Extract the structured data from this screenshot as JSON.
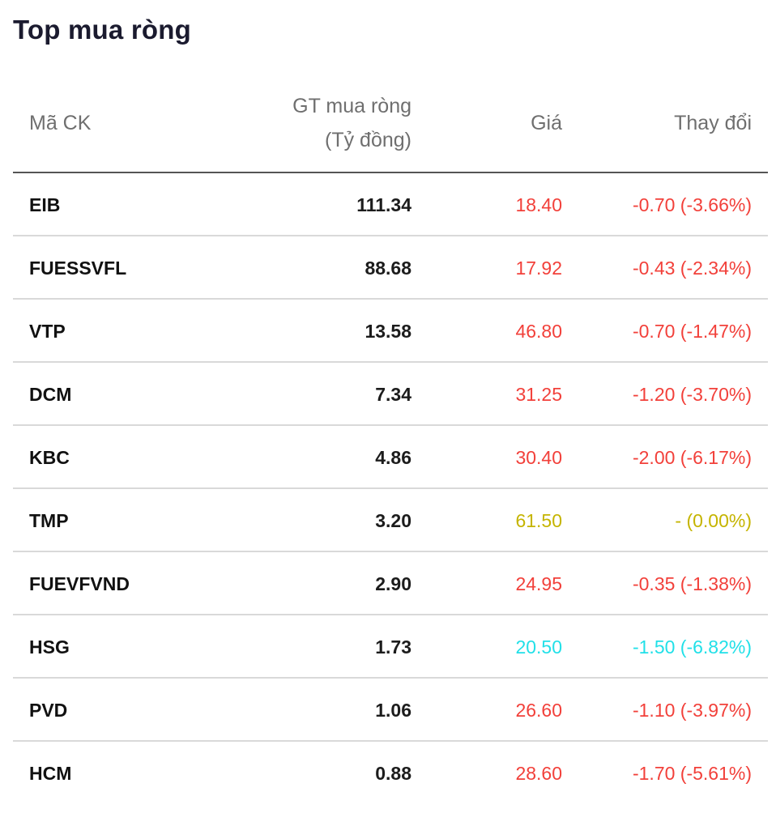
{
  "title": "Top mua ròng",
  "headers": {
    "code": "Mã CK",
    "value_line1": "GT mua ròng",
    "value_line2": "(Tỷ đồng)",
    "price": "Giá",
    "change": "Thay đổi"
  },
  "colors": {
    "down": "#f2403a",
    "reference": "#c5b400",
    "floor": "#21e0e8"
  },
  "rows": [
    {
      "code": "EIB",
      "value": "111.34",
      "price": "18.40",
      "change": "-0.70 (-3.66%)",
      "status": "down"
    },
    {
      "code": "FUESSVFL",
      "value": "88.68",
      "price": "17.92",
      "change": "-0.43 (-2.34%)",
      "status": "down"
    },
    {
      "code": "VTP",
      "value": "13.58",
      "price": "46.80",
      "change": "-0.70 (-1.47%)",
      "status": "down"
    },
    {
      "code": "DCM",
      "value": "7.34",
      "price": "31.25",
      "change": "-1.20 (-3.70%)",
      "status": "down"
    },
    {
      "code": "KBC",
      "value": "4.86",
      "price": "30.40",
      "change": "-2.00 (-6.17%)",
      "status": "down"
    },
    {
      "code": "TMP",
      "value": "3.20",
      "price": "61.50",
      "change": "- (0.00%)",
      "status": "reference"
    },
    {
      "code": "FUEVFVND",
      "value": "2.90",
      "price": "24.95",
      "change": "-0.35 (-1.38%)",
      "status": "down"
    },
    {
      "code": "HSG",
      "value": "1.73",
      "price": "20.50",
      "change": "-1.50 (-6.82%)",
      "status": "floor"
    },
    {
      "code": "PVD",
      "value": "1.06",
      "price": "26.60",
      "change": "-1.10 (-3.97%)",
      "status": "down"
    },
    {
      "code": "HCM",
      "value": "0.88",
      "price": "28.60",
      "change": "-1.70 (-5.61%)",
      "status": "down"
    }
  ]
}
